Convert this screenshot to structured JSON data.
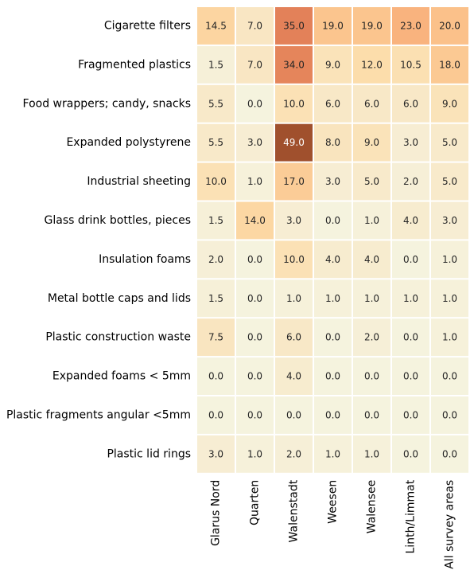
{
  "chart_data": {
    "type": "heatmap",
    "rows": [
      "Cigarette filters",
      "Fragmented plastics",
      "Food wrappers; candy, snacks",
      "Expanded polystyrene",
      "Industrial sheeting",
      "Glass drink bottles, pieces",
      "Insulation foams",
      "Metal bottle caps and lids",
      "Plastic construction waste",
      "Expanded foams < 5mm",
      "Plastic fragments angular <5mm",
      "Plastic lid rings"
    ],
    "columns": [
      "Glarus Nord",
      "Quarten",
      "Walenstadt",
      "Weesen",
      "Walensee",
      "Linth/Limmat",
      "All survey areas"
    ],
    "values": [
      [
        14.5,
        7.0,
        35.0,
        19.0,
        19.0,
        23.0,
        20.0
      ],
      [
        1.5,
        7.0,
        34.0,
        9.0,
        12.0,
        10.5,
        18.0
      ],
      [
        5.5,
        0.0,
        10.0,
        6.0,
        6.0,
        6.0,
        9.0
      ],
      [
        5.5,
        3.0,
        49.0,
        8.0,
        9.0,
        3.0,
        5.0
      ],
      [
        10.0,
        1.0,
        17.0,
        3.0,
        5.0,
        2.0,
        5.0
      ],
      [
        1.5,
        14.0,
        3.0,
        0.0,
        1.0,
        4.0,
        3.0
      ],
      [
        2.0,
        0.0,
        10.0,
        4.0,
        4.0,
        0.0,
        1.0
      ],
      [
        1.5,
        0.0,
        1.0,
        1.0,
        1.0,
        1.0,
        1.0
      ],
      [
        7.5,
        0.0,
        6.0,
        0.0,
        2.0,
        0.0,
        1.0
      ],
      [
        0.0,
        0.0,
        4.0,
        0.0,
        0.0,
        0.0,
        0.0
      ],
      [
        0.0,
        0.0,
        0.0,
        0.0,
        0.0,
        0.0,
        0.0
      ],
      [
        3.0,
        1.0,
        2.0,
        1.0,
        1.0,
        0.0,
        0.0
      ]
    ],
    "value_format": "one decimal",
    "colormap": "Oranges",
    "color_range": [
      0,
      49
    ],
    "colorbar": false,
    "grid_color": "#ffffff"
  }
}
